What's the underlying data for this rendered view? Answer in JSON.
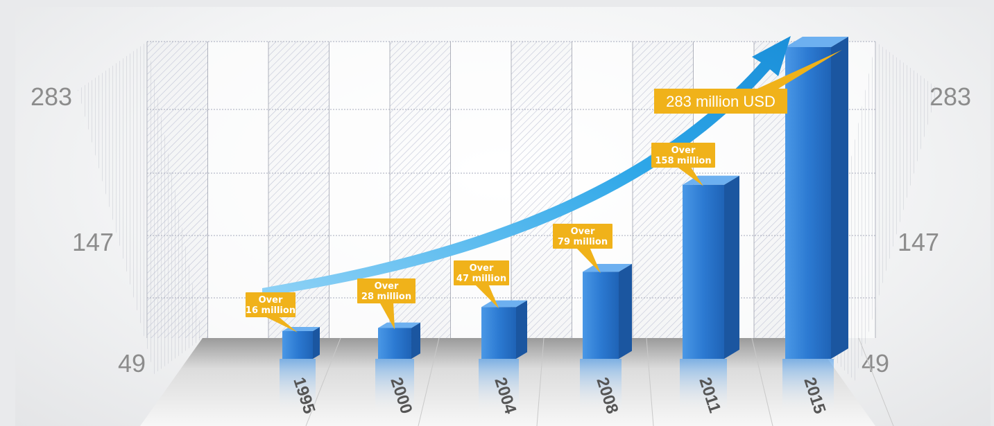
{
  "chart_data": {
    "type": "bar",
    "categories": [
      "1995",
      "2000",
      "2004",
      "2008",
      "2011",
      "2015"
    ],
    "values": [
      16,
      28,
      47,
      79,
      158,
      283
    ],
    "annotations": [
      {
        "line1": "Over",
        "line2": "16 million"
      },
      {
        "line1": "Over",
        "line2": "28 million"
      },
      {
        "line1": "Over",
        "line2": "47 million"
      },
      {
        "line1": "Over",
        "line2": "79 million"
      },
      {
        "line1": "Over",
        "line2": "158 million"
      },
      {
        "line1": "283 million USD",
        "line2": ""
      }
    ],
    "yticks": [
      "49",
      "147",
      "283"
    ],
    "title": "",
    "xlabel": "",
    "ylabel": "",
    "grid": true,
    "colors": {
      "bar": "#2f7fd6",
      "bar_dark": "#1d5fae",
      "callout": "#f0b21a",
      "arrow": "#2aa3e6",
      "tick": "#8c8c8c"
    }
  }
}
